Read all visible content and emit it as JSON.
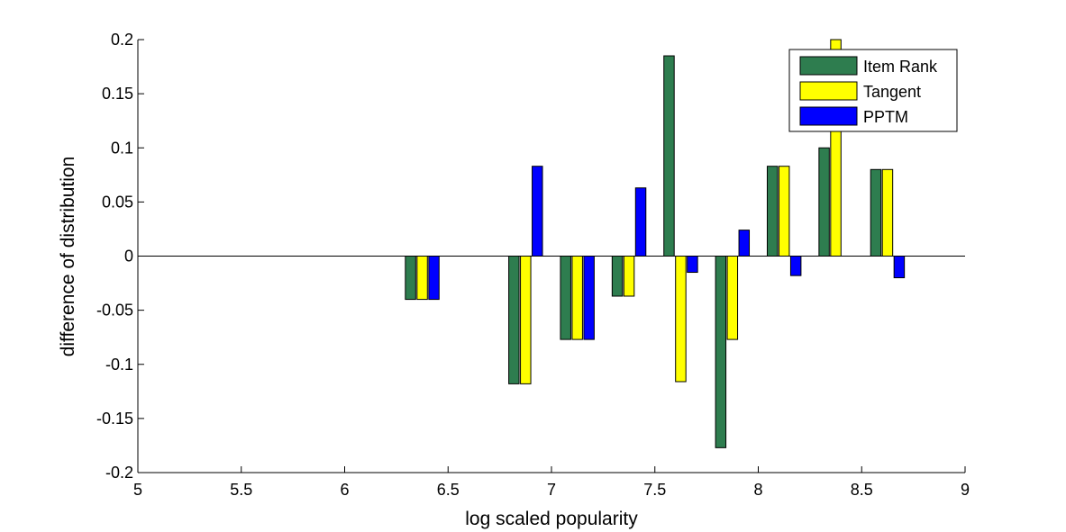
{
  "chart_data": {
    "type": "bar",
    "title": "",
    "xlabel": "log scaled popularity",
    "ylabel": "difference of distribution",
    "xlim": [
      5,
      9
    ],
    "ylim": [
      -0.2,
      0.2
    ],
    "x_ticks": [
      5,
      5.5,
      6,
      6.5,
      7,
      7.5,
      8,
      8.5,
      9
    ],
    "x_tick_labels": [
      "5",
      "5.5",
      "6",
      "6.5",
      "7",
      "7.5",
      "8",
      "8.5",
      "9"
    ],
    "y_ticks": [
      -0.2,
      -0.15,
      -0.1,
      -0.05,
      0,
      0.05,
      0.1,
      0.15,
      0.2
    ],
    "y_tick_labels": [
      "-0.2",
      "-0.15",
      "-0.1",
      "-0.05",
      "0",
      "0.05",
      "0.1",
      "0.15",
      "0.2"
    ],
    "x": [
      6.375,
      6.875,
      7.125,
      7.375,
      7.625,
      7.875,
      8.125,
      8.375,
      8.625
    ],
    "bar_width_data": 0.05,
    "series": [
      {
        "name": "Item Rank",
        "color": "#2e7d4f",
        "values": [
          -0.04,
          -0.118,
          -0.077,
          -0.037,
          0.185,
          -0.177,
          0.083,
          0.1,
          0.08
        ]
      },
      {
        "name": "Tangent",
        "color": "#ffff00",
        "values": [
          -0.04,
          -0.118,
          -0.077,
          -0.037,
          -0.116,
          -0.077,
          0.083,
          0.2,
          0.08
        ]
      },
      {
        "name": "PPTM",
        "color": "#0000ff",
        "values": [
          -0.04,
          0.083,
          -0.077,
          0.063,
          -0.015,
          0.024,
          -0.018,
          0.0,
          -0.02
        ]
      }
    ],
    "legend_position": "top-right",
    "grid": false
  }
}
